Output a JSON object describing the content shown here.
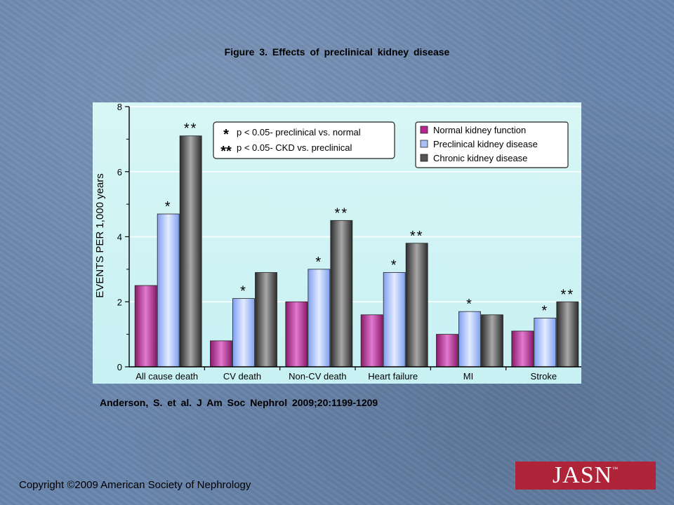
{
  "page": {
    "figure_title": "Figure  3. Effects  of  preclinical  kidney  disease",
    "citation": "Anderson,  S. et al. J Am Soc Nephrol 2009;20:1199-1209",
    "copyright": "Copyright ©2009 American Society of Nephrology",
    "logo_text": "JASN"
  },
  "chart_data": {
    "type": "bar",
    "title": "",
    "ylabel": "EVENTS PER 1,000 years",
    "xlabel": "",
    "ylim": [
      0,
      8
    ],
    "yticks": [
      "0",
      "2",
      "4",
      "6",
      "8"
    ],
    "categories": [
      "All cause death",
      "CV death",
      "Non-CV death",
      "Heart failure",
      "MI",
      "Stroke"
    ],
    "series": [
      {
        "name": "Normal kidney function",
        "color": "#b8278f",
        "values": [
          2.5,
          0.8,
          2.0,
          1.6,
          1.0,
          1.1
        ]
      },
      {
        "name": "Preclinical kidney disease",
        "color": "#a9bff8",
        "values": [
          4.7,
          2.1,
          3.0,
          2.9,
          1.7,
          1.5
        ]
      },
      {
        "name": "Chronic kidney disease",
        "color": "#555555",
        "values": [
          7.1,
          2.9,
          4.5,
          3.8,
          1.6,
          2.0
        ]
      }
    ],
    "significance": [
      {
        "category": "All cause death",
        "series": "Preclinical kidney disease",
        "mark": "*"
      },
      {
        "category": "All cause death",
        "series": "Chronic kidney disease",
        "mark": "**"
      },
      {
        "category": "CV death",
        "series": "Preclinical kidney disease",
        "mark": "*"
      },
      {
        "category": "Non-CV death",
        "series": "Preclinical kidney disease",
        "mark": "*"
      },
      {
        "category": "Non-CV death",
        "series": "Chronic kidney disease",
        "mark": "**"
      },
      {
        "category": "Heart failure",
        "series": "Preclinical kidney disease",
        "mark": "*"
      },
      {
        "category": "Heart failure",
        "series": "Chronic kidney disease",
        "mark": "**"
      },
      {
        "category": "MI",
        "series": "Preclinical kidney disease",
        "mark": "*"
      },
      {
        "category": "Stroke",
        "series": "Preclinical kidney disease",
        "mark": "*"
      },
      {
        "category": "Stroke",
        "series": "Chronic kidney disease",
        "mark": "**"
      }
    ],
    "annotation_box": [
      {
        "mark": "*",
        "text": "p < 0.05- preclinical vs. normal"
      },
      {
        "mark": "**",
        "text": "p < 0.05- CKD vs. preclinical"
      }
    ],
    "legend_position": "top-right",
    "grid": true
  }
}
